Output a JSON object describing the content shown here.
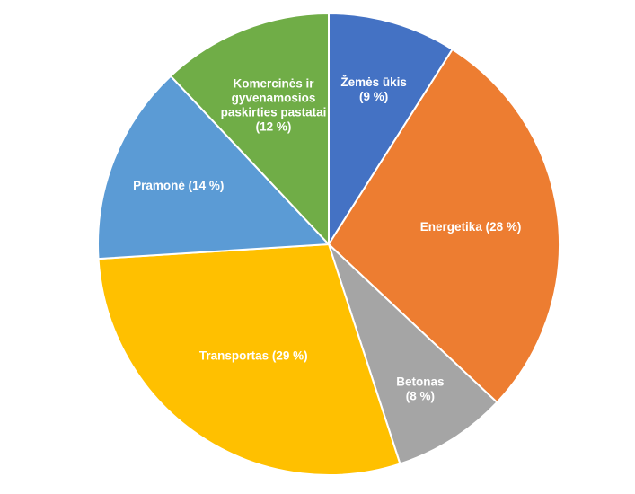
{
  "chart_data": {
    "type": "pie",
    "title": "",
    "slices": [
      {
        "lines": [
          "Žemės ūkis",
          "(9 %)"
        ],
        "value": 9,
        "color": "#4472C4"
      },
      {
        "lines": [
          "Energetika (28 %)"
        ],
        "value": 28,
        "color": "#ED7D31"
      },
      {
        "lines": [
          "Betonas",
          "(8 %)"
        ],
        "value": 8,
        "color": "#A5A5A5"
      },
      {
        "lines": [
          "Transportas (29 %)"
        ],
        "value": 29,
        "color": "#FFC000"
      },
      {
        "lines": [
          "Pramonė (14 %)"
        ],
        "value": 14,
        "color": "#5B9BD5"
      },
      {
        "lines": [
          "Komercinės ir",
          "gyvenamosios",
          "paskirties pastatai",
          "(12 %)"
        ],
        "value": 12,
        "color": "#70AD47"
      }
    ]
  }
}
